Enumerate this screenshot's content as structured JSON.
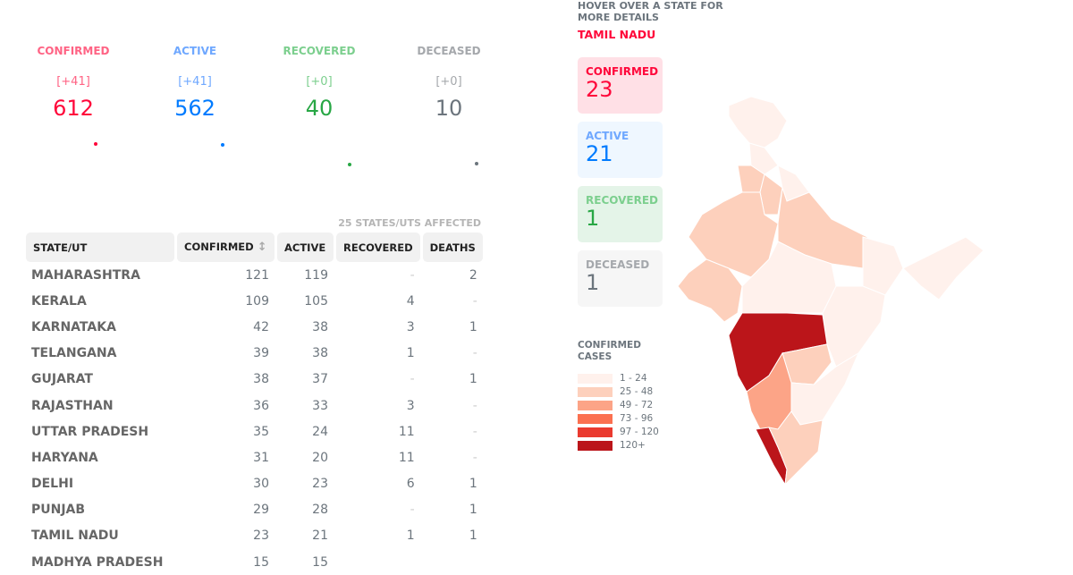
{
  "summary": [
    {
      "label": "CONFIRMED",
      "delta": "[+41]",
      "value": "612",
      "color": "#ff073a",
      "label_color": "#ff6384"
    },
    {
      "label": "ACTIVE",
      "delta": "[+41]",
      "value": "562",
      "color": "#007bff",
      "label_color": "#6fa8ff"
    },
    {
      "label": "RECOVERED",
      "delta": "[+0]",
      "value": "40",
      "color": "#28a745",
      "label_color": "#7ccf8e"
    },
    {
      "label": "DECEASED",
      "delta": "[+0]",
      "value": "10",
      "color": "#6c757d",
      "label_color": "#a5a8ac"
    }
  ],
  "affected": "25 STATES/UTS AFFECTED",
  "table": {
    "headers": [
      "STATE/UT",
      "CONFIRMED",
      "ACTIVE",
      "RECOVERED",
      "DEATHS"
    ],
    "sort_icon": "sort-arrows-icon",
    "rows": [
      [
        "MAHARASHTRA",
        "121",
        "119",
        "-",
        "2"
      ],
      [
        "KERALA",
        "109",
        "105",
        "4",
        "-"
      ],
      [
        "KARNATAKA",
        "42",
        "38",
        "3",
        "1"
      ],
      [
        "TELANGANA",
        "39",
        "38",
        "1",
        "-"
      ],
      [
        "GUJARAT",
        "38",
        "37",
        "-",
        "1"
      ],
      [
        "RAJASTHAN",
        "36",
        "33",
        "3",
        "-"
      ],
      [
        "UTTAR PRADESH",
        "35",
        "24",
        "11",
        "-"
      ],
      [
        "HARYANA",
        "31",
        "20",
        "11",
        "-"
      ],
      [
        "DELHI",
        "30",
        "23",
        "6",
        "1"
      ],
      [
        "PUNJAB",
        "29",
        "28",
        "-",
        "1"
      ],
      [
        "TAMIL NADU",
        "23",
        "21",
        "1",
        "1"
      ],
      [
        "MADHYA PRADESH",
        "15",
        "15",
        "",
        ""
      ]
    ]
  },
  "map": {
    "hover_hint": "HOVER OVER A STATE FOR MORE DETAILS",
    "state": "TAMIL NADU",
    "stats": [
      {
        "label": "CONFIRMED",
        "value": "23",
        "bg": "#ffe0e6",
        "color": "#ff073a"
      },
      {
        "label": "ACTIVE",
        "value": "21",
        "bg": "#eff7ff",
        "color": "#007bff",
        "label_color": "#6fa8ff"
      },
      {
        "label": "RECOVERED",
        "value": "1",
        "bg": "#e4f4e8",
        "color": "#28a745",
        "label_color": "#7ccf8e"
      },
      {
        "label": "DECEASED",
        "value": "1",
        "bg": "#f6f6f6",
        "color": "#6c757d",
        "label_color": "#a5a8ac"
      }
    ],
    "legend_title": "CONFIRMED CASES",
    "legend": [
      {
        "label": "1 - 24",
        "color": "#fff1ec"
      },
      {
        "label": "25 - 48",
        "color": "#fdd0bc"
      },
      {
        "label": "49 - 72",
        "color": "#fca487"
      },
      {
        "label": "73 - 96",
        "color": "#fb7050"
      },
      {
        "label": "97 - 120",
        "color": "#ea3a2f"
      },
      {
        "label": "120+",
        "color": "#bb151a"
      }
    ]
  }
}
